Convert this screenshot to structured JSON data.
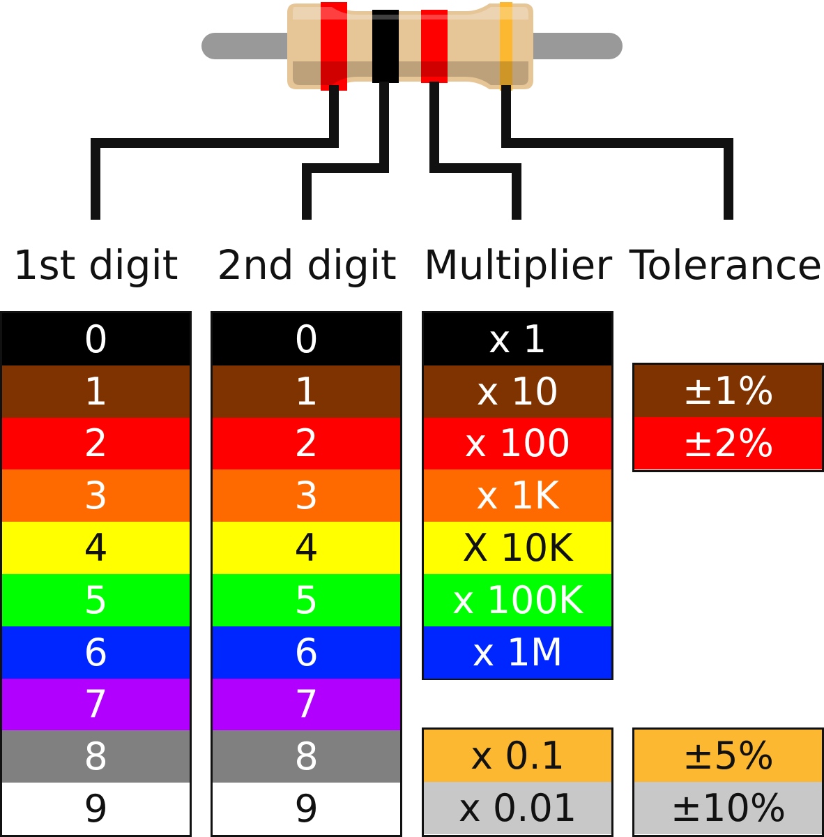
{
  "headers": {
    "first_digit": "1st digit",
    "second_digit": "2nd digit",
    "multiplier": "Multiplier",
    "tolerance": "Tolerance"
  },
  "colors": {
    "black": "#000000",
    "brown": "#7f3300",
    "red": "#ff0000",
    "orange": "#ff6a00",
    "yellow": "#ffff00",
    "green": "#00ff00",
    "blue": "#0026ff",
    "violet": "#b200ff",
    "gray": "#808080",
    "white": "#ffffff",
    "gold": "#fbb830",
    "silver": "#c8c8c8"
  },
  "resistor": {
    "bands": [
      "red",
      "black",
      "red",
      "gold"
    ]
  },
  "first_digit": [
    {
      "color": "black",
      "label": "0"
    },
    {
      "color": "brown",
      "label": "1"
    },
    {
      "color": "red",
      "label": "2"
    },
    {
      "color": "orange",
      "label": "3"
    },
    {
      "color": "yellow",
      "label": "4"
    },
    {
      "color": "green",
      "label": "5"
    },
    {
      "color": "blue",
      "label": "6"
    },
    {
      "color": "violet",
      "label": "7"
    },
    {
      "color": "gray",
      "label": "8"
    },
    {
      "color": "white",
      "label": "9"
    }
  ],
  "second_digit": [
    {
      "color": "black",
      "label": "0"
    },
    {
      "color": "brown",
      "label": "1"
    },
    {
      "color": "red",
      "label": "2"
    },
    {
      "color": "orange",
      "label": "3"
    },
    {
      "color": "yellow",
      "label": "4"
    },
    {
      "color": "green",
      "label": "5"
    },
    {
      "color": "blue",
      "label": "6"
    },
    {
      "color": "violet",
      "label": "7"
    },
    {
      "color": "gray",
      "label": "8"
    },
    {
      "color": "white",
      "label": "9"
    }
  ],
  "multiplier": [
    {
      "color": "black",
      "label": "x 1"
    },
    {
      "color": "brown",
      "label": "x 10"
    },
    {
      "color": "red",
      "label": "x 100"
    },
    {
      "color": "orange",
      "label": "x 1K"
    },
    {
      "color": "yellow",
      "label": "X 10K"
    },
    {
      "color": "green",
      "label": "x 100K"
    },
    {
      "color": "blue",
      "label": "x 1M"
    }
  ],
  "multiplier_fractional": [
    {
      "color": "gold",
      "label": "x 0.1"
    },
    {
      "color": "silver",
      "label": "x 0.01"
    }
  ],
  "tolerance_top": [
    {
      "color": "brown",
      "label": "±1%"
    },
    {
      "color": "red",
      "label": "±2%"
    }
  ],
  "tolerance_bottom": [
    {
      "color": "gold",
      "label": "±5%"
    },
    {
      "color": "silver",
      "label": "±10%"
    }
  ]
}
